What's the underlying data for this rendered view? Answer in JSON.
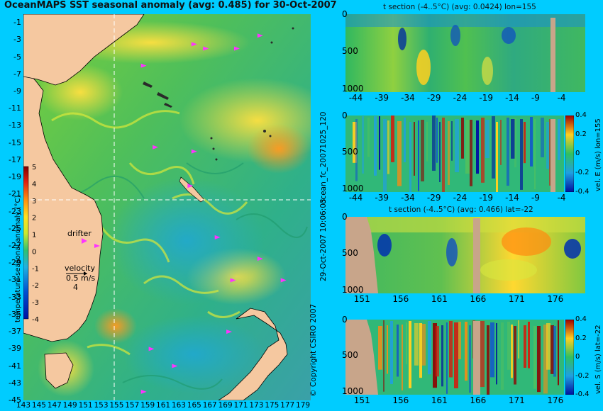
{
  "header": {
    "title": "OceanMAPS SST seasonal anomaly (avg: 0.485) for 30-Oct-2007"
  },
  "side_labels": {
    "run_id": "ocean_fc_20071025_120",
    "run_time": "29-Oct-2007 10:06:03",
    "copyright": "© Copyright CSIRO 2007"
  },
  "colors": {
    "background": "#00ccff",
    "land": "#f5c8a0",
    "section_land": "#c8a58a",
    "drifter": "#ff33ff"
  },
  "chart_data": [
    {
      "type": "heatmap",
      "name": "sst_anomaly_map",
      "title": "OceanMAPS SST seasonal anomaly (avg: 0.485) for 30-Oct-2007",
      "x_ticks": [
        "143",
        "145",
        "147",
        "149",
        "151",
        "153",
        "155",
        "157",
        "159",
        "161",
        "163",
        "165",
        "167",
        "169",
        "171",
        "173",
        "175",
        "177",
        "179"
      ],
      "y_ticks": [
        "-1",
        "-3",
        "-5",
        "-7",
        "-9",
        "-11",
        "-13",
        "-15",
        "-17",
        "-19",
        "-21",
        "-23",
        "-25",
        "-27",
        "-29",
        "-31",
        "-33",
        "-35",
        "-37",
        "-39",
        "-41",
        "-43",
        "-45"
      ],
      "xlim": [
        143,
        180
      ],
      "ylim": [
        -45,
        0
      ],
      "crosshair": {
        "lon": 155,
        "lat": -22
      },
      "colorbar": {
        "label": "temperature seasonal anomaly (°C)",
        "ticks": [
          "5",
          "4",
          "3",
          "2",
          "1",
          "0",
          "-1",
          "-2",
          "-3",
          "-4"
        ],
        "range": [
          -4,
          5
        ]
      },
      "legend": {
        "drifter_label": "drifter",
        "velocity_label": "velocity",
        "velocity_speed": "0.5 m/s",
        "velocity_scale": "4"
      },
      "drifters": [
        {
          "lon": 152.5,
          "lat": -27
        },
        {
          "lon": 158.5,
          "lat": -6
        },
        {
          "lon": 165,
          "lat": -3.5
        },
        {
          "lon": 166.5,
          "lat": -4
        },
        {
          "lon": 170.5,
          "lat": -4
        },
        {
          "lon": 173.5,
          "lat": -2.5
        },
        {
          "lon": 160,
          "lat": -15.5
        },
        {
          "lon": 164.5,
          "lat": -20
        },
        {
          "lon": 165,
          "lat": -16
        },
        {
          "lon": 168,
          "lat": -26
        },
        {
          "lon": 170,
          "lat": -31
        },
        {
          "lon": 173.5,
          "lat": -28.5
        },
        {
          "lon": 176.5,
          "lat": -31
        },
        {
          "lon": 169.5,
          "lat": -37
        },
        {
          "lon": 162.5,
          "lat": -41
        },
        {
          "lon": 158.5,
          "lat": -44
        },
        {
          "lon": 159.5,
          "lat": -39
        }
      ]
    },
    {
      "type": "heatmap",
      "name": "t_section_lon155",
      "title": "t section (-4..5°C) (avg: 0.0424) lon=155",
      "x_ticks": [
        "-44",
        "-39",
        "-34",
        "-29",
        "-24",
        "-19",
        "-14",
        "-9",
        "-4"
      ],
      "y_ticks": [
        "0",
        "500",
        "1000"
      ],
      "xlim": [
        -46,
        0
      ],
      "ylim": [
        1050,
        0
      ],
      "xlabel": "",
      "ylabel": ""
    },
    {
      "type": "heatmap",
      "name": "vel_e_section_lon155",
      "title": "",
      "x_ticks": [
        "-44",
        "-39",
        "-34",
        "-29",
        "-24",
        "-19",
        "-14",
        "-9",
        "-4"
      ],
      "y_ticks": [
        "0",
        "500",
        "1000"
      ],
      "xlim": [
        -46,
        0
      ],
      "ylim": [
        1050,
        0
      ],
      "colorbar": {
        "label": "vel. E (m/s) lon=155",
        "ticks": [
          "0.4",
          "0.2",
          "0",
          "-0.2",
          "-0.4"
        ],
        "range": [
          -0.4,
          0.4
        ]
      }
    },
    {
      "type": "heatmap",
      "name": "t_section_lat22",
      "title": "t section (-4..5°C) (avg: 0.466) lat=-22",
      "x_ticks": [
        "151",
        "156",
        "161",
        "166",
        "171",
        "176"
      ],
      "y_ticks": [
        "0",
        "500",
        "1000"
      ],
      "xlim": [
        149,
        180
      ],
      "ylim": [
        1050,
        0
      ]
    },
    {
      "type": "heatmap",
      "name": "vel_s_section_lat22",
      "title": "",
      "x_ticks": [
        "151",
        "156",
        "161",
        "166",
        "171",
        "176"
      ],
      "y_ticks": [
        "0",
        "500",
        "1000"
      ],
      "xlim": [
        149,
        180
      ],
      "ylim": [
        1050,
        0
      ],
      "colorbar": {
        "label": "vel. S (m/s) lat=-22",
        "ticks": [
          "0.4",
          "0.2",
          "0",
          "-0.2",
          "-0.4"
        ],
        "range": [
          -0.4,
          0.4
        ]
      }
    }
  ]
}
